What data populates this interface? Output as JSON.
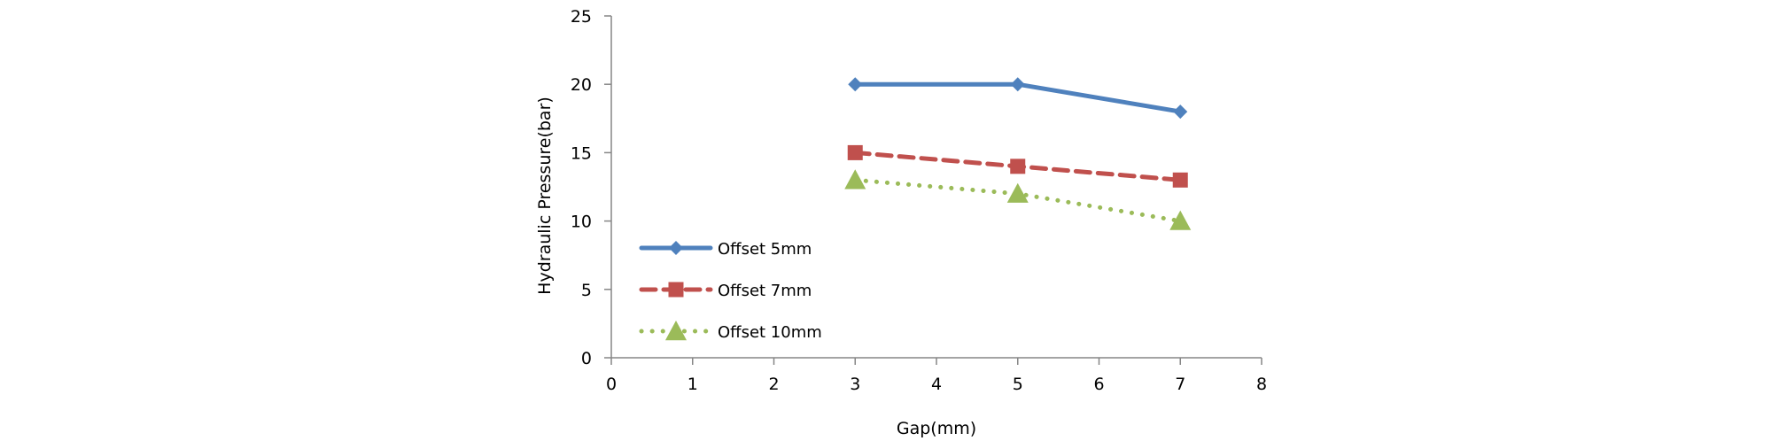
{
  "chart_data": {
    "type": "line",
    "title": "",
    "xlabel": "Gap(mm)",
    "ylabel": "Hydraulic Pressure(bar)",
    "xlim": [
      0,
      8
    ],
    "ylim": [
      0,
      25
    ],
    "xticks": [
      0,
      1,
      2,
      3,
      4,
      5,
      6,
      7,
      8
    ],
    "yticks": [
      0,
      5,
      10,
      15,
      20,
      25
    ],
    "grid": false,
    "legend_position": "bottom-left",
    "series": [
      {
        "name": "Offset 5mm",
        "x": [
          3,
          5,
          7
        ],
        "y": [
          20,
          20,
          18
        ],
        "color": "#4F81BD",
        "marker": "diamond",
        "line_style": "solid"
      },
      {
        "name": "Offset 7mm",
        "x": [
          3,
          5,
          7
        ],
        "y": [
          15,
          14,
          13
        ],
        "color": "#C0504D",
        "marker": "square",
        "line_style": "dashed"
      },
      {
        "name": "Offset 10mm",
        "x": [
          3,
          5,
          7
        ],
        "y": [
          13,
          12,
          10
        ],
        "color": "#9BBB59",
        "marker": "triangle",
        "line_style": "dotted"
      }
    ]
  }
}
